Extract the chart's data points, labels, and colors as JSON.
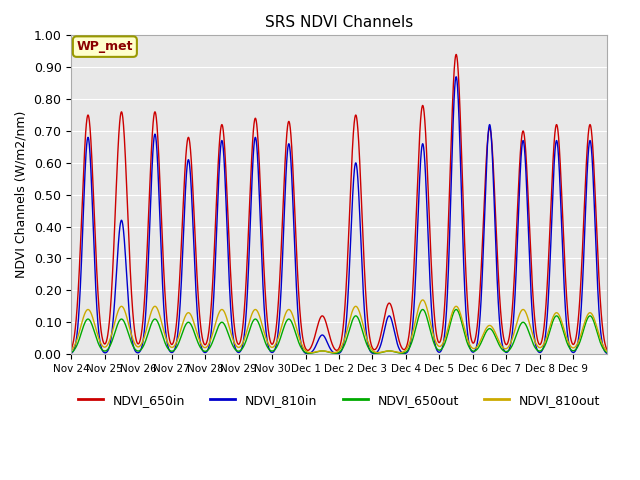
{
  "title": "SRS NDVI Channels",
  "ylabel": "NDVI Channels (W/m2/nm)",
  "ylim": [
    0.0,
    1.0
  ],
  "bg_color": "#e8e8e8",
  "annotation_text": "WP_met",
  "legend_labels": [
    "NDVI_650in",
    "NDVI_810in",
    "NDVI_650out",
    "NDVI_810out"
  ],
  "legend_colors": [
    "#cc0000",
    "#0000cc",
    "#00aa00",
    "#ccaa00"
  ],
  "xtick_labels": [
    "Nov 24",
    "Nov 25",
    "Nov 26",
    "Nov 27",
    "Nov 28",
    "Nov 29",
    "Nov 30",
    "Dec 1",
    "Dec 2",
    "Dec 3",
    "Dec 4",
    "Dec 5",
    "Dec 6",
    "Dec 7",
    "Dec 8",
    "Dec 9"
  ],
  "ytick_vals": [
    0.0,
    0.1,
    0.2,
    0.3,
    0.4,
    0.5,
    0.6,
    0.7,
    0.8,
    0.9,
    1.0
  ],
  "red_peaks": [
    0.75,
    0.76,
    0.76,
    0.68,
    0.72,
    0.74,
    0.73,
    0.12,
    0.75,
    0.16,
    0.78,
    0.94,
    0.71,
    0.7,
    0.72,
    0.72
  ],
  "blue_peaks": [
    0.68,
    0.42,
    0.69,
    0.61,
    0.67,
    0.68,
    0.66,
    0.06,
    0.6,
    0.12,
    0.66,
    0.87,
    0.72,
    0.67,
    0.67,
    0.67
  ],
  "green_peaks": [
    0.11,
    0.11,
    0.11,
    0.1,
    0.1,
    0.11,
    0.11,
    0.01,
    0.12,
    0.01,
    0.14,
    0.14,
    0.08,
    0.1,
    0.12,
    0.12
  ],
  "orange_peaks": [
    0.14,
    0.15,
    0.15,
    0.13,
    0.14,
    0.14,
    0.14,
    0.01,
    0.15,
    0.01,
    0.17,
    0.15,
    0.09,
    0.14,
    0.13,
    0.13
  ]
}
